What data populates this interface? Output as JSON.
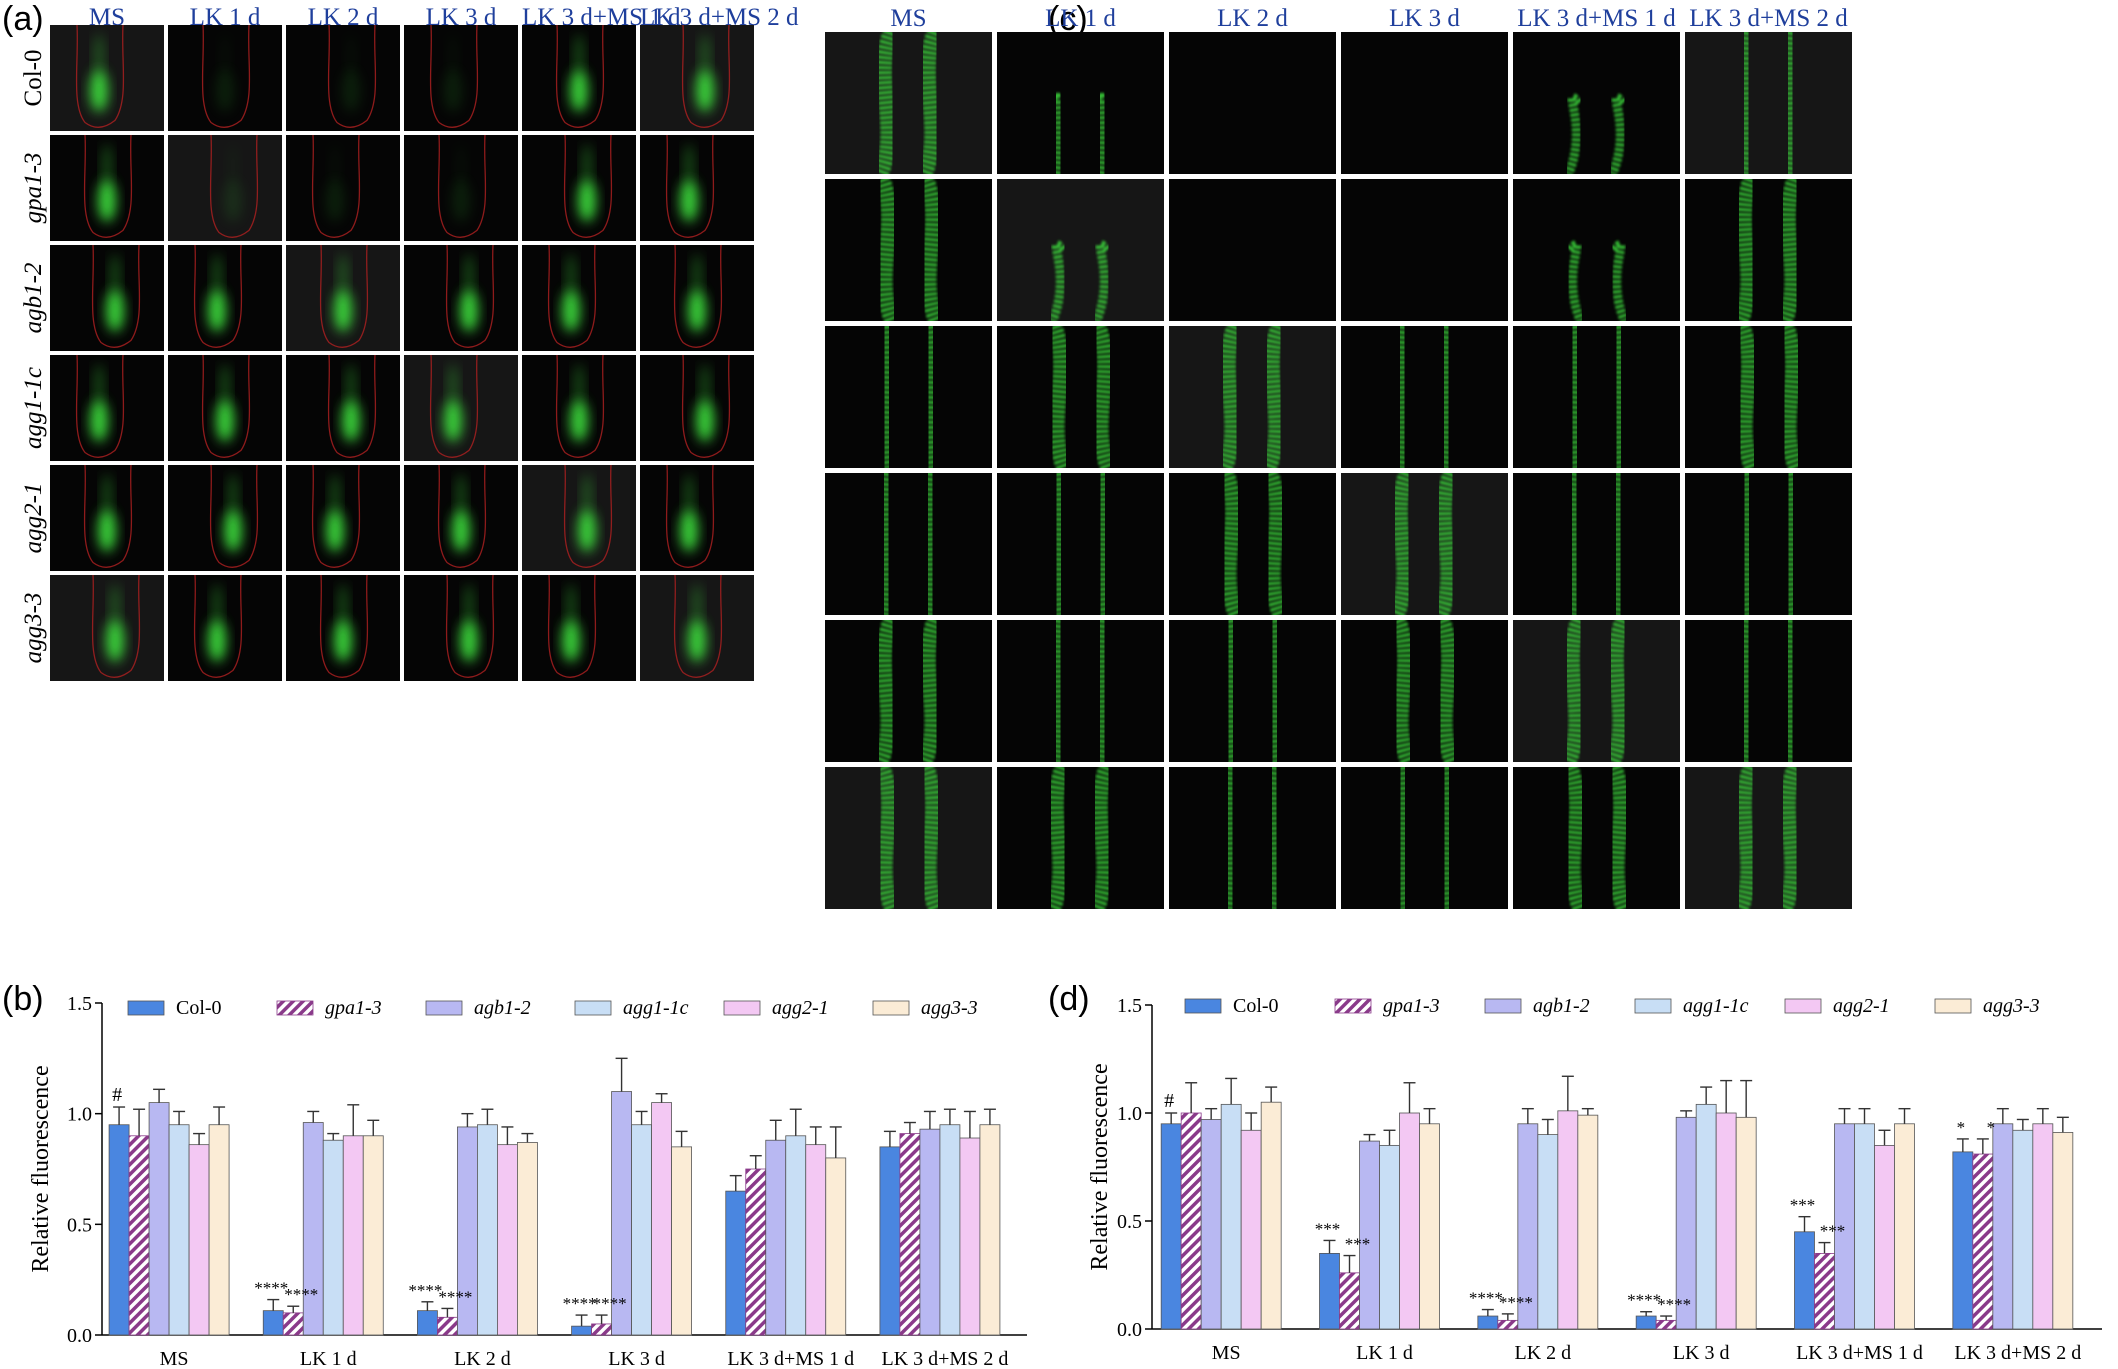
{
  "panels": {
    "a": {
      "label": "(a)"
    },
    "b": {
      "label": "(b)"
    },
    "c": {
      "label": "(c)"
    },
    "d": {
      "label": "(d)"
    }
  },
  "image_grid": {
    "columns": [
      "MS",
      "LK 1 d",
      "LK 2 d",
      "LK 3 d",
      "LK 3 d+MS 1 d",
      "LK 3 d+MS 2 d"
    ],
    "rows": [
      "Col-0",
      "gpa1-3",
      "agb1-2",
      "agg1-1c",
      "agg2-1",
      "agg3-3"
    ]
  },
  "colors": {
    "col0": "#4a86e0",
    "gpa13": "#8a3a8a",
    "agb12": "#b8b8f2",
    "agg11c": "#c8def5",
    "agg21": "#f3c8f3",
    "agg33": "#fbecd6",
    "fluor": "#3ddc3d",
    "outline": "#b02020"
  },
  "chart_data": [
    {
      "type": "bar",
      "panel": "b",
      "categories": [
        "MS",
        "LK 1 d",
        "LK 2 d",
        "LK 3 d",
        "LK 3 d+MS 1 d",
        "LK 3 d+MS 2 d"
      ],
      "ylabel": "Relative fluorescence",
      "ylim": [
        0,
        1.5
      ],
      "yticks": [
        "0.0",
        "0.5",
        "1.0",
        "1.5"
      ],
      "legend_placement": "top",
      "series": [
        {
          "name": "Col-0",
          "values": [
            0.95,
            0.11,
            0.11,
            0.04,
            0.65,
            0.85
          ],
          "errors": [
            0.08,
            0.05,
            0.04,
            0.05,
            0.07,
            0.07
          ]
        },
        {
          "name": "gpa1-3",
          "values": [
            0.9,
            0.1,
            0.08,
            0.05,
            0.75,
            0.91
          ],
          "errors": [
            0.12,
            0.03,
            0.04,
            0.04,
            0.06,
            0.05
          ]
        },
        {
          "name": "agb1-2",
          "values": [
            1.05,
            0.96,
            0.94,
            1.1,
            0.88,
            0.93
          ],
          "errors": [
            0.06,
            0.05,
            0.06,
            0.15,
            0.09,
            0.08
          ]
        },
        {
          "name": "agg1-1c",
          "values": [
            0.95,
            0.88,
            0.95,
            0.95,
            0.9,
            0.95
          ],
          "errors": [
            0.06,
            0.03,
            0.07,
            0.06,
            0.12,
            0.07
          ]
        },
        {
          "name": "agg2-1",
          "values": [
            0.86,
            0.9,
            0.86,
            1.05,
            0.86,
            0.89
          ],
          "errors": [
            0.05,
            0.14,
            0.08,
            0.04,
            0.08,
            0.12
          ]
        },
        {
          "name": "agg3-3",
          "values": [
            0.95,
            0.9,
            0.87,
            0.85,
            0.8,
            0.95
          ],
          "errors": [
            0.08,
            0.07,
            0.04,
            0.07,
            0.14,
            0.07
          ]
        }
      ],
      "annotations": [
        {
          "category": "MS",
          "series": "Col-0",
          "text": "#"
        },
        {
          "category": "LK 1 d",
          "series": "Col-0",
          "text": "****"
        },
        {
          "category": "LK 1 d",
          "series": "gpa1-3",
          "text": "****"
        },
        {
          "category": "LK 2 d",
          "series": "Col-0",
          "text": "****"
        },
        {
          "category": "LK 2 d",
          "series": "gpa1-3",
          "text": "****"
        },
        {
          "category": "LK 3 d",
          "series": "Col-0",
          "text": "****"
        },
        {
          "category": "LK 3 d",
          "series": "gpa1-3",
          "text": "****"
        }
      ]
    },
    {
      "type": "bar",
      "panel": "d",
      "categories": [
        "MS",
        "LK 1 d",
        "LK 2 d",
        "LK 3 d",
        "LK 3 d+MS 1 d",
        "LK 3 d+MS 2 d"
      ],
      "ylabel": "Relative fluorescence",
      "ylim": [
        0,
        1.5
      ],
      "yticks": [
        "0.0",
        "0.5",
        "1.0",
        "1.5"
      ],
      "legend_placement": "top",
      "series": [
        {
          "name": "Col-0",
          "values": [
            0.95,
            0.35,
            0.06,
            0.06,
            0.45,
            0.82
          ],
          "errors": [
            0.05,
            0.06,
            0.03,
            0.02,
            0.07,
            0.06
          ]
        },
        {
          "name": "gpa1-3",
          "values": [
            1.0,
            0.26,
            0.04,
            0.04,
            0.35,
            0.81
          ],
          "errors": [
            0.14,
            0.08,
            0.03,
            0.02,
            0.05,
            0.07
          ]
        },
        {
          "name": "agb1-2",
          "values": [
            0.97,
            0.87,
            0.95,
            0.98,
            0.95,
            0.95
          ],
          "errors": [
            0.05,
            0.03,
            0.07,
            0.03,
            0.07,
            0.07
          ]
        },
        {
          "name": "agg1-1c",
          "values": [
            1.04,
            0.85,
            0.9,
            1.04,
            0.95,
            0.92
          ],
          "errors": [
            0.12,
            0.07,
            0.07,
            0.08,
            0.07,
            0.05
          ]
        },
        {
          "name": "agg2-1",
          "values": [
            0.92,
            1.0,
            1.01,
            1.0,
            0.85,
            0.95
          ],
          "errors": [
            0.08,
            0.14,
            0.16,
            0.15,
            0.07,
            0.07
          ]
        },
        {
          "name": "agg3-3",
          "values": [
            1.05,
            0.95,
            0.99,
            0.98,
            0.95,
            0.91
          ],
          "errors": [
            0.07,
            0.07,
            0.03,
            0.17,
            0.07,
            0.07
          ]
        }
      ],
      "annotations": [
        {
          "category": "MS",
          "series": "Col-0",
          "text": "#"
        },
        {
          "category": "LK 1 d",
          "series": "Col-0",
          "text": "***"
        },
        {
          "category": "LK 1 d",
          "series": "gpa1-3",
          "text": "***"
        },
        {
          "category": "LK 2 d",
          "series": "Col-0",
          "text": "****"
        },
        {
          "category": "LK 2 d",
          "series": "gpa1-3",
          "text": "****"
        },
        {
          "category": "LK 3 d",
          "series": "Col-0",
          "text": "****"
        },
        {
          "category": "LK 3 d",
          "series": "gpa1-3",
          "text": "****"
        },
        {
          "category": "LK 3 d+MS 1 d",
          "series": "Col-0",
          "text": "***"
        },
        {
          "category": "LK 3 d+MS 1 d",
          "series": "gpa1-3",
          "text": "***"
        },
        {
          "category": "LK 3 d+MS 2 d",
          "series": "Col-0",
          "text": "*"
        },
        {
          "category": "LK 3 d+MS 2 d",
          "series": "gpa1-3",
          "text": "*"
        }
      ]
    }
  ]
}
